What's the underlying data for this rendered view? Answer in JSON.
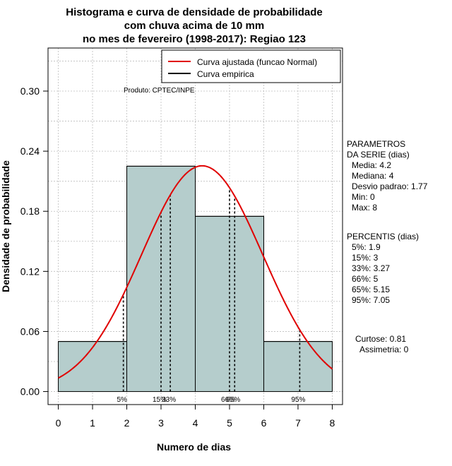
{
  "chart_data": {
    "type": "bar",
    "title_lines": [
      "Histograma e curva de densidade de probabilidade",
      "com chuva acima de 10 mm",
      "no mes de fevereiro (1998-2017): Regiao 123"
    ],
    "xlabel": "Numero de dias",
    "ylabel": "Densidade de probabilidade",
    "xlim": [
      -0.3,
      8.3
    ],
    "ylim": [
      -0.013,
      0.343
    ],
    "xticks": [
      0,
      1,
      2,
      3,
      4,
      5,
      6,
      7,
      8
    ],
    "yticks": [
      0.0,
      0.06,
      0.12,
      0.18,
      0.24,
      0.3
    ],
    "ytick_labels": [
      "0.00",
      "0.06",
      "0.12",
      "0.18",
      "0.24",
      "0.30"
    ],
    "bins": [
      {
        "from": 0,
        "to": 2,
        "density": 0.05
      },
      {
        "from": 2,
        "to": 4,
        "density": 0.225
      },
      {
        "from": 4,
        "to": 6,
        "density": 0.175
      },
      {
        "from": 6,
        "to": 8,
        "density": 0.05
      }
    ],
    "bar_color": "#b5cdcc",
    "curve": {
      "name": "Curva ajustada (funcao Normal)",
      "distribution": "normal",
      "mean": 4.2,
      "sd": 1.77,
      "color": "#e00000"
    },
    "empirical": {
      "name": "Curva empirica",
      "color": "#000000"
    },
    "legend": {
      "position": "top-right",
      "entries": [
        "Curva ajustada (funcao Normal)",
        "Curva empirica"
      ]
    },
    "credit": "Produto: CPTEC/INPE",
    "percentile_lines": [
      {
        "label": "5%",
        "x": 1.9
      },
      {
        "label": "15%",
        "x": 3
      },
      {
        "label": "33%",
        "x": 3.27
      },
      {
        "label": "66%",
        "x": 5
      },
      {
        "label": "65%",
        "x": 5.15
      },
      {
        "label": "95%",
        "x": 7.05
      }
    ],
    "stats_parametros": [
      "PARAMETROS",
      "DA SERIE (dias)",
      "Media: 4.2",
      "Mediana: 4",
      "Desvio padrao: 1.77",
      "Min: 0",
      "Max: 8"
    ],
    "stats_percentis": [
      "PERCENTIS (dias)",
      "5%: 1.9",
      "15%: 3",
      "33%: 3.27",
      "66%: 5",
      "65%: 5.15",
      "95%: 7.05"
    ],
    "stats_shape": [
      "Curtose: 0.81",
      "Assimetria: 0"
    ],
    "grid": true
  }
}
